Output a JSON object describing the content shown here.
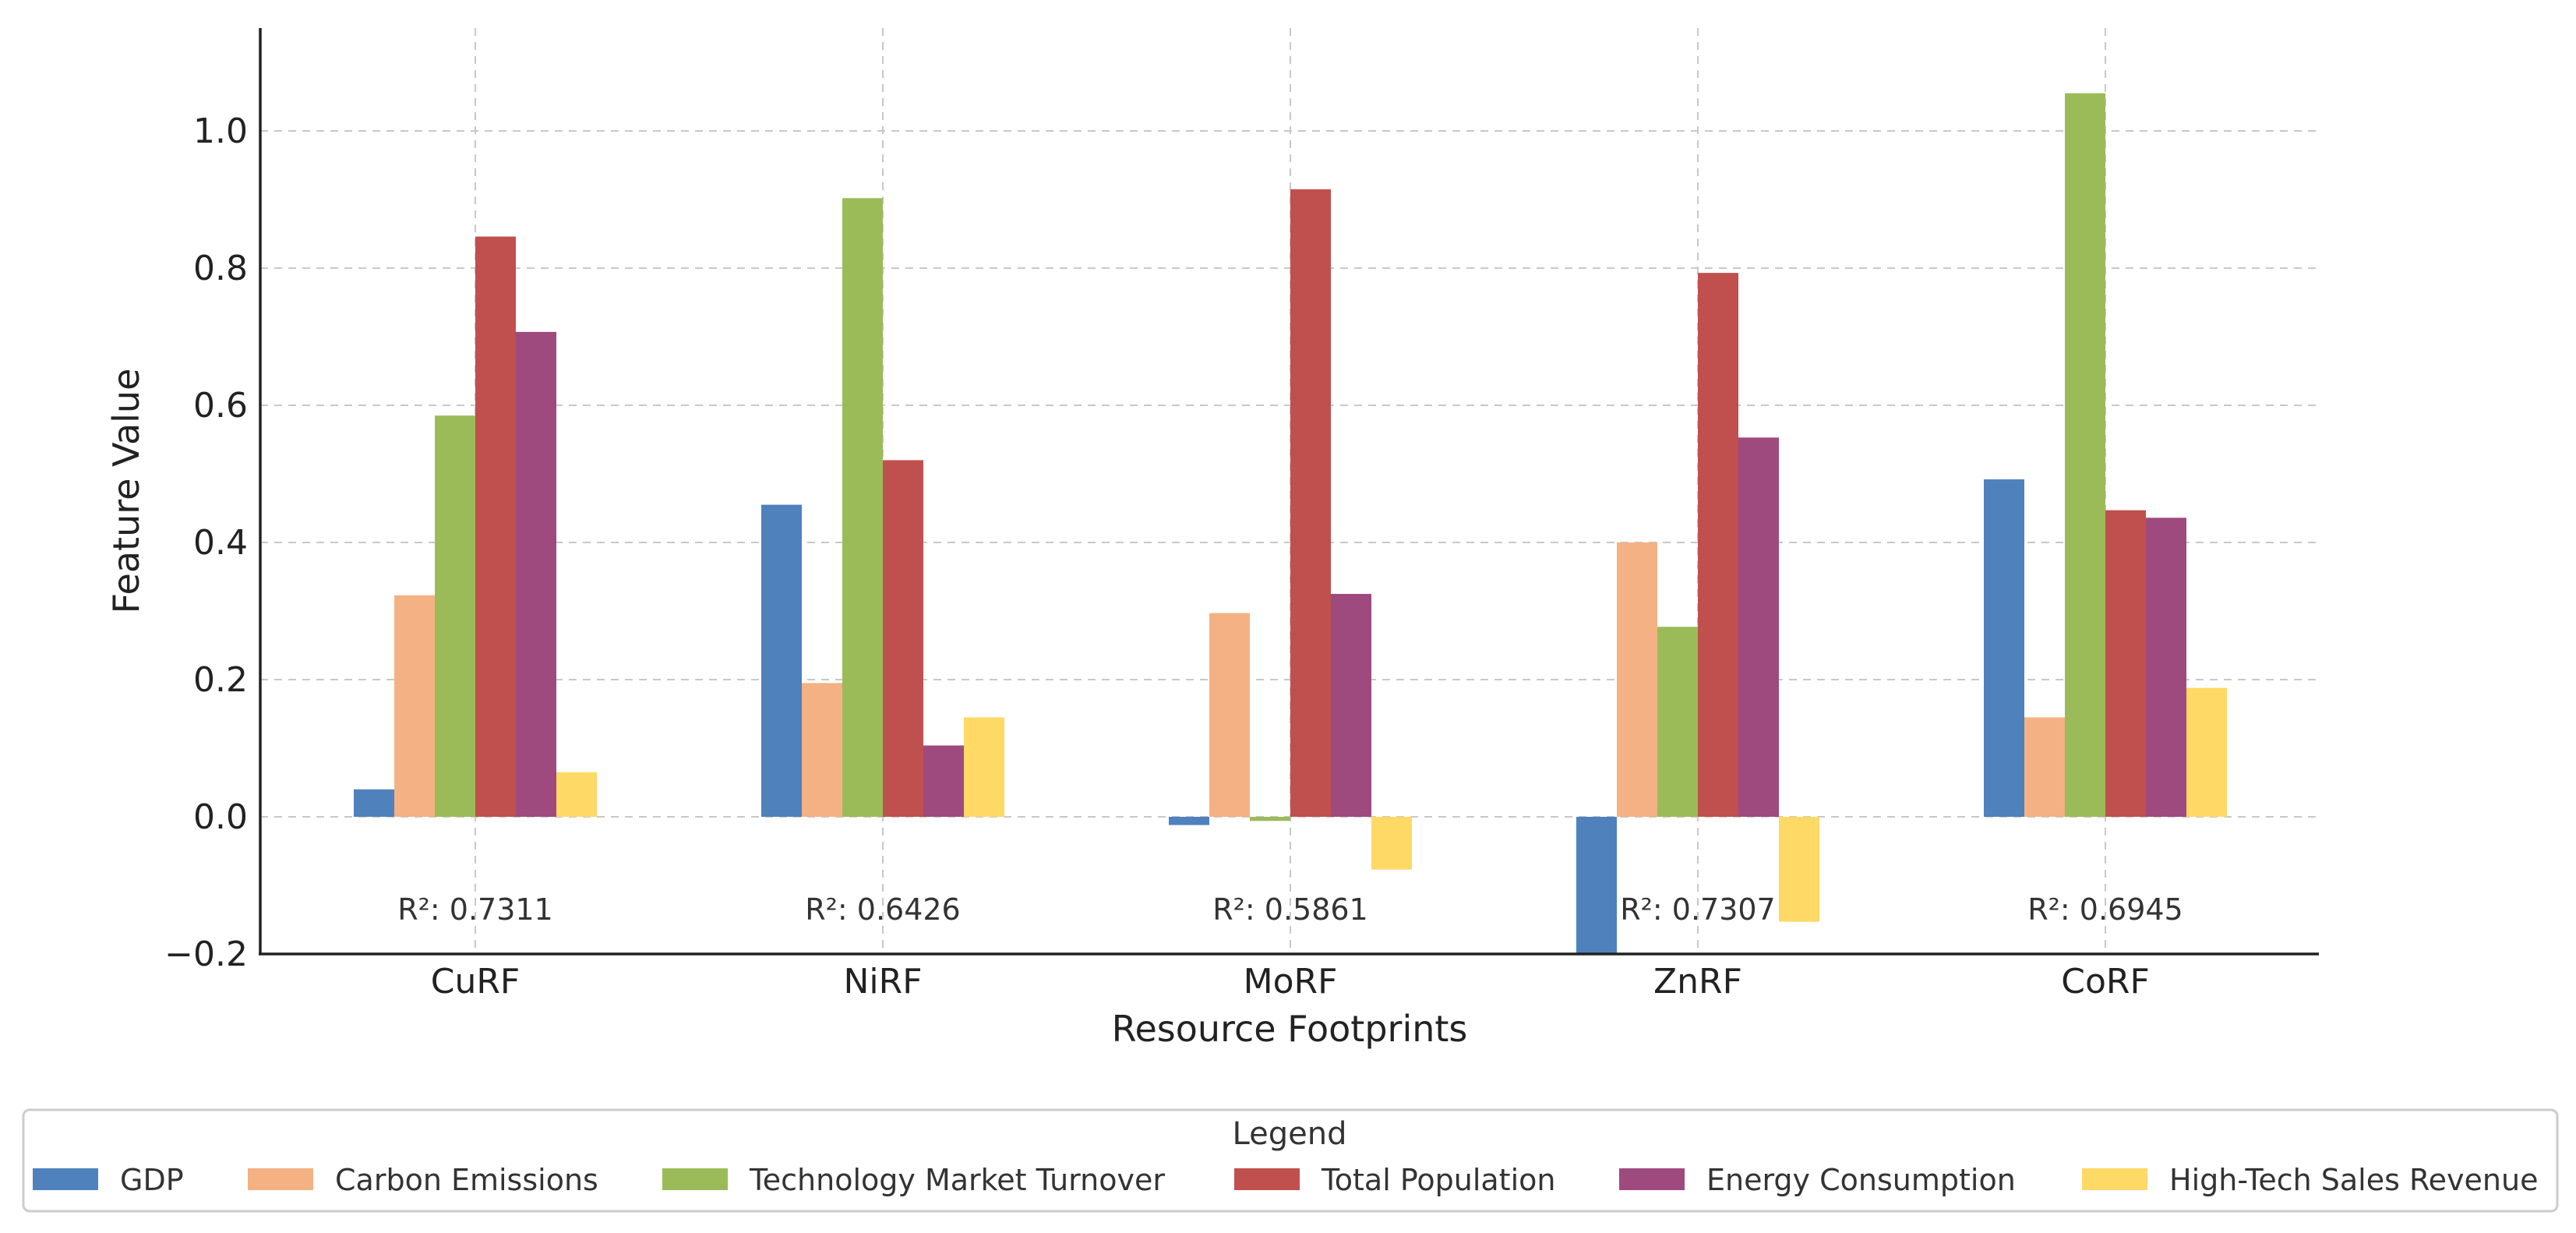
{
  "chart_data": {
    "type": "bar",
    "title": "",
    "xlabel": "Resource Footprints",
    "ylabel": "Feature Value",
    "ylim": [
      -0.2,
      1.15
    ],
    "yticks": [
      -0.2,
      0.0,
      0.2,
      0.4,
      0.6,
      0.8,
      1.0
    ],
    "ytick_labels": [
      "−0.2",
      "0.0",
      "0.2",
      "0.4",
      "0.6",
      "0.8",
      "1.0"
    ],
    "grid": true,
    "categories": [
      "CuRF",
      "NiRF",
      "MoRF",
      "ZnRF",
      "CoRF"
    ],
    "r2_labels": [
      "R²: 0.7311",
      "R²: 0.6426",
      "R²: 0.5861",
      "R²: 0.7307",
      "R²: 0.6945"
    ],
    "series": [
      {
        "name": "GDP",
        "color": "#4f81bd",
        "values": [
          0.04,
          0.455,
          -0.012,
          -0.2,
          0.492
        ]
      },
      {
        "name": "Carbon Emissions",
        "color": "#f4b183",
        "values": [
          0.323,
          0.195,
          0.297,
          0.4,
          0.145
        ]
      },
      {
        "name": "Technology Market Turnover",
        "color": "#9bbb59",
        "values": [
          0.585,
          0.902,
          -0.006,
          0.277,
          1.055
        ]
      },
      {
        "name": "Total Population",
        "color": "#c0504d",
        "values": [
          0.846,
          0.52,
          0.915,
          0.793,
          0.447
        ]
      },
      {
        "name": "Energy Consumption",
        "color": "#9e4a7e",
        "values": [
          0.707,
          0.104,
          0.325,
          0.553,
          0.436
        ]
      },
      {
        "name": "High-Tech Sales Revenue",
        "color": "#ffd966",
        "values": [
          0.065,
          0.145,
          -0.077,
          -0.153,
          0.188
        ]
      }
    ],
    "legend": {
      "title": "Legend",
      "placement": "bottom"
    }
  }
}
